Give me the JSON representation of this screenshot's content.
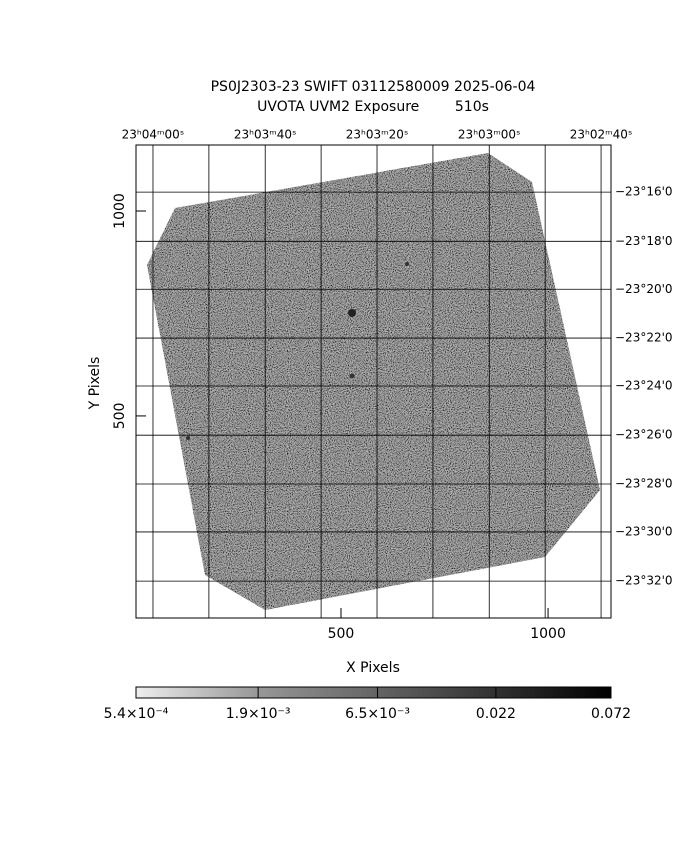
{
  "chart_data": {
    "type": "image",
    "title": "PS0J2303-23 SWIFT 03112580009 2025-06-04",
    "subtitle": "UVOTA UVM2 Exposure        510s",
    "x_label": "X Pixels",
    "y_label": "Y Pixels",
    "xlim": [
      5,
      1152
    ],
    "ylim": [
      7,
      1161
    ],
    "xticks": [
      500,
      1000
    ],
    "yticks": [
      500,
      1000
    ],
    "ra_ticks": [
      {
        "value": 46,
        "label": "23ʰ04ᵐ00ˢ"
      },
      {
        "value": 317,
        "label": "23ʰ03ᵐ40ˢ"
      },
      {
        "value": 587,
        "label": "23ʰ03ᵐ20ˢ"
      },
      {
        "value": 858,
        "label": "23ʰ03ᵐ00ˢ"
      },
      {
        "value": 1128,
        "label": "23ʰ02ᵐ40ˢ"
      }
    ],
    "ra_minor_grid": [
      181,
      452,
      722,
      993
    ],
    "dec_ticks": [
      {
        "value": 1046,
        "label": "−23°16'0"
      },
      {
        "value": 926,
        "label": "−23°18'0"
      },
      {
        "value": 809,
        "label": "−23°20'0"
      },
      {
        "value": 690,
        "label": "−23°22'0"
      },
      {
        "value": 573,
        "label": "−23°24'0"
      },
      {
        "value": 453,
        "label": "−23°26'0"
      },
      {
        "value": 334,
        "label": "−23°28'0"
      },
      {
        "value": 217,
        "label": "−23°30'0"
      },
      {
        "value": 97,
        "label": "−23°32'0"
      }
    ],
    "grid": true,
    "colorbar": {
      "scale": "log",
      "clim": [
        0.00054,
        0.072
      ],
      "ticks": [
        {
          "value": 0.00054,
          "label": "5.4×10⁻⁴"
        },
        {
          "value": 0.0019,
          "label": "1.9×10⁻³"
        },
        {
          "value": 0.0065,
          "label": "6.5×10⁻³"
        },
        0.022,
        0.072
      ]
    }
  }
}
